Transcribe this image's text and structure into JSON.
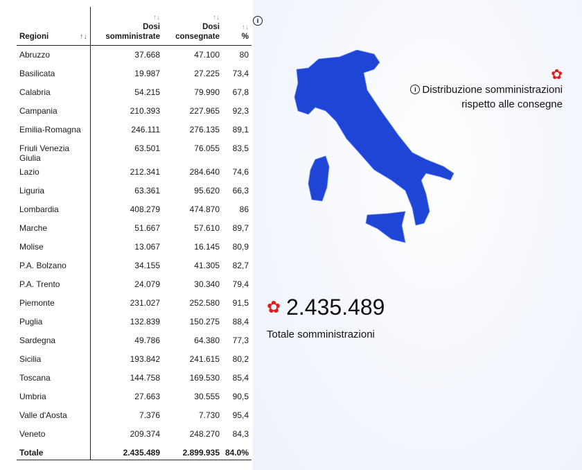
{
  "table": {
    "headers": {
      "region": "Regioni",
      "administered": "Dosi somministrate",
      "delivered": "Dosi consegnate",
      "percent": "%"
    },
    "rows": [
      {
        "region": "Abruzzo",
        "administered": "37.668",
        "delivered": "47.100",
        "percent": "80"
      },
      {
        "region": "Basilicata",
        "administered": "19.987",
        "delivered": "27.225",
        "percent": "73,4"
      },
      {
        "region": "Calabria",
        "administered": "54.215",
        "delivered": "79.990",
        "percent": "67,8"
      },
      {
        "region": "Campania",
        "administered": "210.393",
        "delivered": "227.965",
        "percent": "92,3"
      },
      {
        "region": "Emilia-Romagna",
        "administered": "246.111",
        "delivered": "276.135",
        "percent": "89,1"
      },
      {
        "region": "Friuli Venezia Giulia",
        "administered": "63.501",
        "delivered": "76.055",
        "percent": "83,5"
      },
      {
        "region": "Lazio",
        "administered": "212.341",
        "delivered": "284.640",
        "percent": "74,6"
      },
      {
        "region": "Liguria",
        "administered": "63.361",
        "delivered": "95.620",
        "percent": "66,3"
      },
      {
        "region": "Lombardia",
        "administered": "408.279",
        "delivered": "474.870",
        "percent": "86"
      },
      {
        "region": "Marche",
        "administered": "51.667",
        "delivered": "57.610",
        "percent": "89,7"
      },
      {
        "region": "Molise",
        "administered": "13.067",
        "delivered": "16.145",
        "percent": "80,9"
      },
      {
        "region": "P.A. Bolzano",
        "administered": "34.155",
        "delivered": "41.305",
        "percent": "82,7"
      },
      {
        "region": "P.A. Trento",
        "administered": "24.079",
        "delivered": "30.340",
        "percent": "79,4"
      },
      {
        "region": "Piemonte",
        "administered": "231.027",
        "delivered": "252.580",
        "percent": "91,5"
      },
      {
        "region": "Puglia",
        "administered": "132.839",
        "delivered": "150.275",
        "percent": "88,4"
      },
      {
        "region": "Sardegna",
        "administered": "49.786",
        "delivered": "64.380",
        "percent": "77,3"
      },
      {
        "region": "Sicilia",
        "administered": "193.842",
        "delivered": "241.615",
        "percent": "80,2"
      },
      {
        "region": "Toscana",
        "administered": "144.758",
        "delivered": "169.530",
        "percent": "85,4"
      },
      {
        "region": "Umbria",
        "administered": "27.663",
        "delivered": "30.555",
        "percent": "90,5"
      },
      {
        "region": "Valle d'Aosta",
        "administered": "7.376",
        "delivered": "7.730",
        "percent": "95,4"
      },
      {
        "region": "Veneto",
        "administered": "209.374",
        "delivered": "248.270",
        "percent": "84,3"
      }
    ],
    "total": {
      "region": "Totale",
      "administered": "2.435.489",
      "delivered": "2.899.935",
      "percent": "84.0%"
    }
  },
  "map": {
    "legend_line1": "Distribuzione somministrazioni",
    "legend_line2": "rispetto alle consegne",
    "fill": "#1f45d6",
    "accent": "#e21b1b"
  },
  "summary": {
    "total_value": "2.435.489",
    "total_label": "Totale somministrazioni"
  }
}
